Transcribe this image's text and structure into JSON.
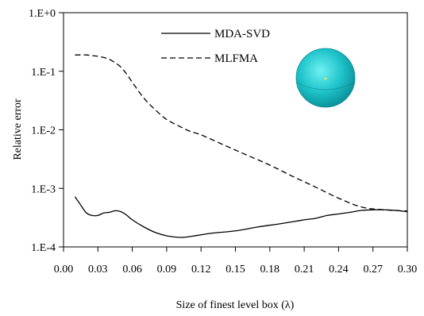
{
  "chart_data": {
    "type": "line",
    "title": "",
    "xlabel": "Size of finest level box (λ)",
    "ylabel": "Relative error",
    "xlim": [
      0.0,
      0.3
    ],
    "ylim": [
      0.0001,
      1
    ],
    "yscale": "log",
    "x_ticks": [
      0.0,
      0.03,
      0.06,
      0.09,
      0.12,
      0.15,
      0.18,
      0.21,
      0.24,
      0.27,
      0.3
    ],
    "x_tick_labels": [
      "0.00",
      "0.03",
      "0.06",
      "0.09",
      "0.12",
      "0.15",
      "0.18",
      "0.21",
      "0.24",
      "0.27",
      "0.30"
    ],
    "y_ticks": [
      0.0001,
      0.001,
      0.01,
      0.1,
      1
    ],
    "y_tick_labels": [
      "1.E-4",
      "1.E-3",
      "1.E-2",
      "1.E-1",
      "1.E+0"
    ],
    "grid": false,
    "legend_position": "top-center",
    "series": [
      {
        "name": "MDA-SVD",
        "style": "solid",
        "color": "#000000",
        "x": [
          0.01,
          0.015,
          0.02,
          0.025,
          0.03,
          0.035,
          0.04,
          0.045,
          0.05,
          0.055,
          0.06,
          0.07,
          0.08,
          0.09,
          0.1,
          0.105,
          0.11,
          0.12,
          0.13,
          0.15,
          0.17,
          0.19,
          0.21,
          0.22,
          0.23,
          0.24,
          0.25,
          0.26,
          0.27,
          0.28,
          0.29,
          0.3
        ],
        "y": [
          0.00072,
          0.00052,
          0.00038,
          0.000345,
          0.000345,
          0.00038,
          0.00039,
          0.000415,
          0.0004,
          0.00035,
          0.00029,
          0.00022,
          0.000177,
          0.000155,
          0.000146,
          0.000146,
          0.00015,
          0.000161,
          0.000172,
          0.000188,
          0.00022,
          0.00025,
          0.00029,
          0.000308,
          0.000345,
          0.000365,
          0.00039,
          0.00042,
          0.00043,
          0.00043,
          0.00042,
          0.0004
        ]
      },
      {
        "name": "MLFMA",
        "style": "dashed",
        "color": "#000000",
        "x": [
          0.01,
          0.015,
          0.02,
          0.025,
          0.03,
          0.035,
          0.04,
          0.045,
          0.05,
          0.055,
          0.06,
          0.07,
          0.08,
          0.09,
          0.1,
          0.11,
          0.12,
          0.14,
          0.16,
          0.18,
          0.2,
          0.22,
          0.24,
          0.26,
          0.28,
          0.3
        ],
        "y": [
          0.19,
          0.19,
          0.19,
          0.185,
          0.18,
          0.172,
          0.16,
          0.14,
          0.118,
          0.09,
          0.065,
          0.035,
          0.022,
          0.015,
          0.0118,
          0.0095,
          0.0082,
          0.0055,
          0.0037,
          0.0025,
          0.0016,
          0.00105,
          0.00068,
          0.00048,
          0.00043,
          0.00041
        ]
      }
    ]
  },
  "sphere": {
    "color": "#20c6cc"
  }
}
